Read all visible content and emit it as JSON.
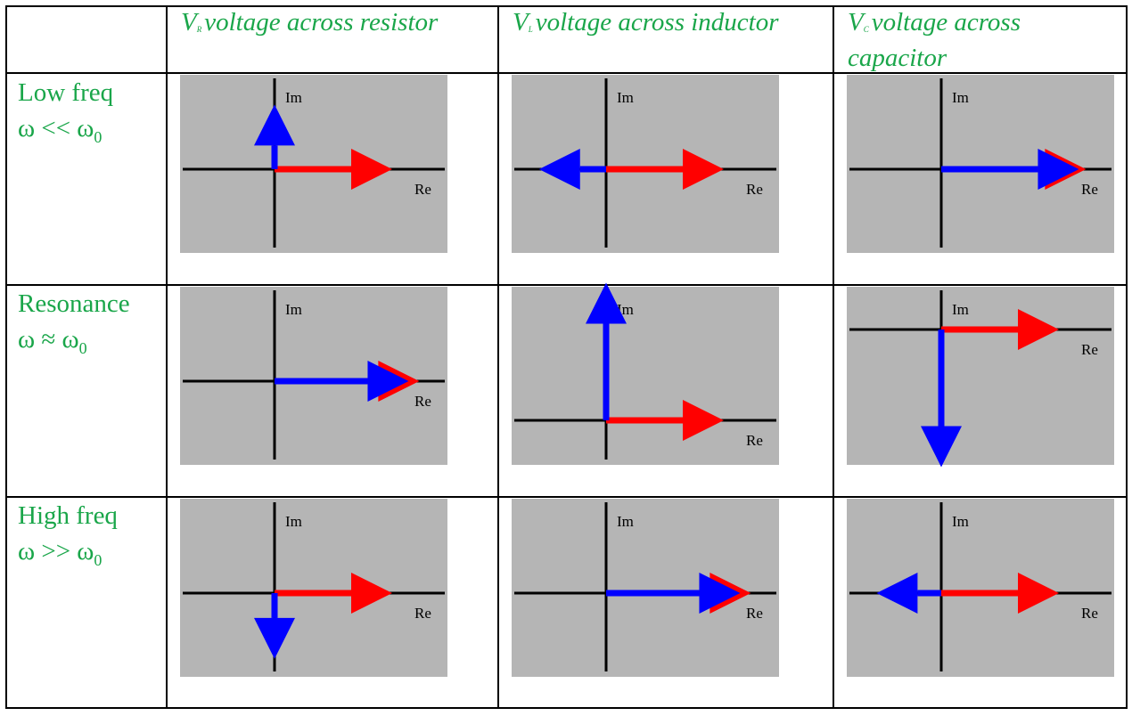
{
  "columns": [
    {
      "symbol": "V",
      "subscript": "R",
      "label": "voltage across resistor"
    },
    {
      "symbol": "V",
      "subscript": "L",
      "label": "voltage across inductor"
    },
    {
      "symbol": "V",
      "subscript": "C",
      "label": "voltage across capacitor"
    }
  ],
  "rows": [
    {
      "label": "Low freq",
      "condition": "ω << ω",
      "condition_sub": "0"
    },
    {
      "label": "Resonance",
      "condition": "ω ≈ ω",
      "condition_sub": "0"
    },
    {
      "label": "High freq",
      "condition": "ω >> ω",
      "condition_sub": "0"
    }
  ],
  "axis_labels": {
    "im": "Im",
    "re": "Re"
  },
  "colors": {
    "header_text": "#1aa64a",
    "plot_bg": "#b5b5b5",
    "red_phasor": "#ff0000",
    "blue_phasor": "#0000ff"
  },
  "phasors": [
    [
      {
        "red": [
          1,
          0
        ],
        "blue": [
          0,
          0.55
        ]
      },
      {
        "red": [
          1,
          0
        ],
        "blue": [
          -0.57,
          0
        ]
      },
      {
        "red": [
          1.23,
          0
        ],
        "blue": [
          1.17,
          0
        ]
      }
    ],
    [
      {
        "red": [
          1.23,
          0
        ],
        "blue": [
          1.14,
          0
        ]
      },
      {
        "red": [
          1,
          0
        ],
        "blue": [
          0,
          1.17
        ]
      },
      {
        "red": [
          1,
          0
        ],
        "blue": [
          0,
          -1.17
        ]
      }
    ],
    [
      {
        "red": [
          1,
          0
        ],
        "blue": [
          0,
          -0.56
        ]
      },
      {
        "red": [
          1.23,
          0
        ],
        "blue": [
          1.14,
          0
        ]
      },
      {
        "red": [
          1,
          0
        ],
        "blue": [
          -0.55,
          0
        ]
      }
    ]
  ]
}
